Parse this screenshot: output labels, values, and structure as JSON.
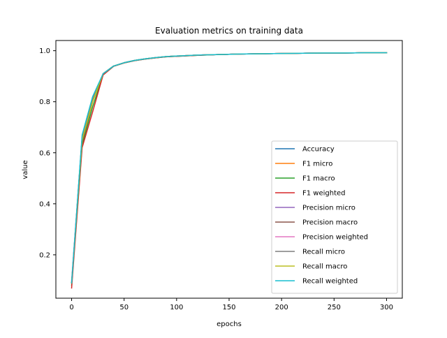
{
  "chart_data": {
    "type": "line",
    "title": "Evaluation metrics on training data",
    "xlabel": "epochs",
    "ylabel": "value",
    "xlim": [
      -15,
      315
    ],
    "ylim": [
      0.03,
      1.04
    ],
    "xticks": [
      0,
      50,
      100,
      150,
      200,
      250,
      300
    ],
    "xtick_labels": [
      "0",
      "50",
      "100",
      "150",
      "200",
      "250",
      "300"
    ],
    "yticks": [
      0.2,
      0.4,
      0.6,
      0.8,
      1.0
    ],
    "ytick_labels": [
      "0.2",
      "0.4",
      "0.6",
      "0.8",
      "1.0"
    ],
    "grid": false,
    "legend_position": "lower-right",
    "x": [
      0,
      10,
      20,
      30,
      40,
      50,
      60,
      70,
      80,
      90,
      100,
      120,
      140,
      160,
      180,
      200,
      220,
      240,
      260,
      280,
      300
    ],
    "series": [
      {
        "name": "Accuracy",
        "color": "#1f77b4",
        "values": [
          0.09,
          0.66,
          0.81,
          0.91,
          0.94,
          0.953,
          0.962,
          0.968,
          0.973,
          0.977,
          0.979,
          0.983,
          0.985,
          0.987,
          0.988,
          0.989,
          0.99,
          0.991,
          0.991,
          0.992,
          0.992
        ]
      },
      {
        "name": "F1 micro",
        "color": "#ff7f0e",
        "values": [
          0.09,
          0.66,
          0.81,
          0.91,
          0.94,
          0.953,
          0.962,
          0.968,
          0.973,
          0.977,
          0.979,
          0.983,
          0.985,
          0.987,
          0.988,
          0.989,
          0.99,
          0.991,
          0.991,
          0.992,
          0.992
        ]
      },
      {
        "name": "F1 macro",
        "color": "#2ca02c",
        "values": [
          0.08,
          0.63,
          0.78,
          0.905,
          0.939,
          0.952,
          0.961,
          0.967,
          0.972,
          0.976,
          0.978,
          0.982,
          0.985,
          0.987,
          0.988,
          0.989,
          0.99,
          0.991,
          0.991,
          0.992,
          0.992
        ]
      },
      {
        "name": "F1 weighted",
        "color": "#d62728",
        "values": [
          0.07,
          0.62,
          0.76,
          0.905,
          0.939,
          0.952,
          0.961,
          0.967,
          0.972,
          0.976,
          0.978,
          0.982,
          0.985,
          0.987,
          0.988,
          0.989,
          0.99,
          0.991,
          0.991,
          0.992,
          0.992
        ]
      },
      {
        "name": "Precision micro",
        "color": "#9467bd",
        "values": [
          0.09,
          0.66,
          0.81,
          0.91,
          0.94,
          0.953,
          0.962,
          0.968,
          0.973,
          0.977,
          0.979,
          0.983,
          0.985,
          0.987,
          0.988,
          0.989,
          0.99,
          0.991,
          0.991,
          0.992,
          0.992
        ]
      },
      {
        "name": "Precision macro",
        "color": "#8c564b",
        "values": [
          0.09,
          0.64,
          0.8,
          0.91,
          0.94,
          0.953,
          0.962,
          0.968,
          0.973,
          0.977,
          0.979,
          0.983,
          0.985,
          0.987,
          0.988,
          0.989,
          0.99,
          0.991,
          0.991,
          0.992,
          0.992
        ]
      },
      {
        "name": "Precision weighted",
        "color": "#e377c2",
        "values": [
          0.1,
          0.66,
          0.81,
          0.91,
          0.94,
          0.953,
          0.962,
          0.968,
          0.973,
          0.977,
          0.979,
          0.983,
          0.985,
          0.987,
          0.988,
          0.989,
          0.99,
          0.991,
          0.991,
          0.992,
          0.992
        ]
      },
      {
        "name": "Recall micro",
        "color": "#7f7f7f",
        "values": [
          0.09,
          0.66,
          0.81,
          0.91,
          0.94,
          0.953,
          0.962,
          0.968,
          0.973,
          0.977,
          0.979,
          0.983,
          0.985,
          0.987,
          0.988,
          0.989,
          0.99,
          0.991,
          0.991,
          0.992,
          0.992
        ]
      },
      {
        "name": "Recall macro",
        "color": "#bcbd22",
        "values": [
          0.09,
          0.65,
          0.8,
          0.91,
          0.94,
          0.953,
          0.962,
          0.968,
          0.973,
          0.977,
          0.979,
          0.983,
          0.985,
          0.987,
          0.988,
          0.989,
          0.99,
          0.991,
          0.991,
          0.992,
          0.992
        ]
      },
      {
        "name": "Recall weighted",
        "color": "#17becf",
        "values": [
          0.09,
          0.67,
          0.82,
          0.91,
          0.94,
          0.953,
          0.962,
          0.968,
          0.973,
          0.977,
          0.979,
          0.983,
          0.985,
          0.987,
          0.988,
          0.989,
          0.99,
          0.991,
          0.991,
          0.992,
          0.992
        ]
      }
    ]
  }
}
